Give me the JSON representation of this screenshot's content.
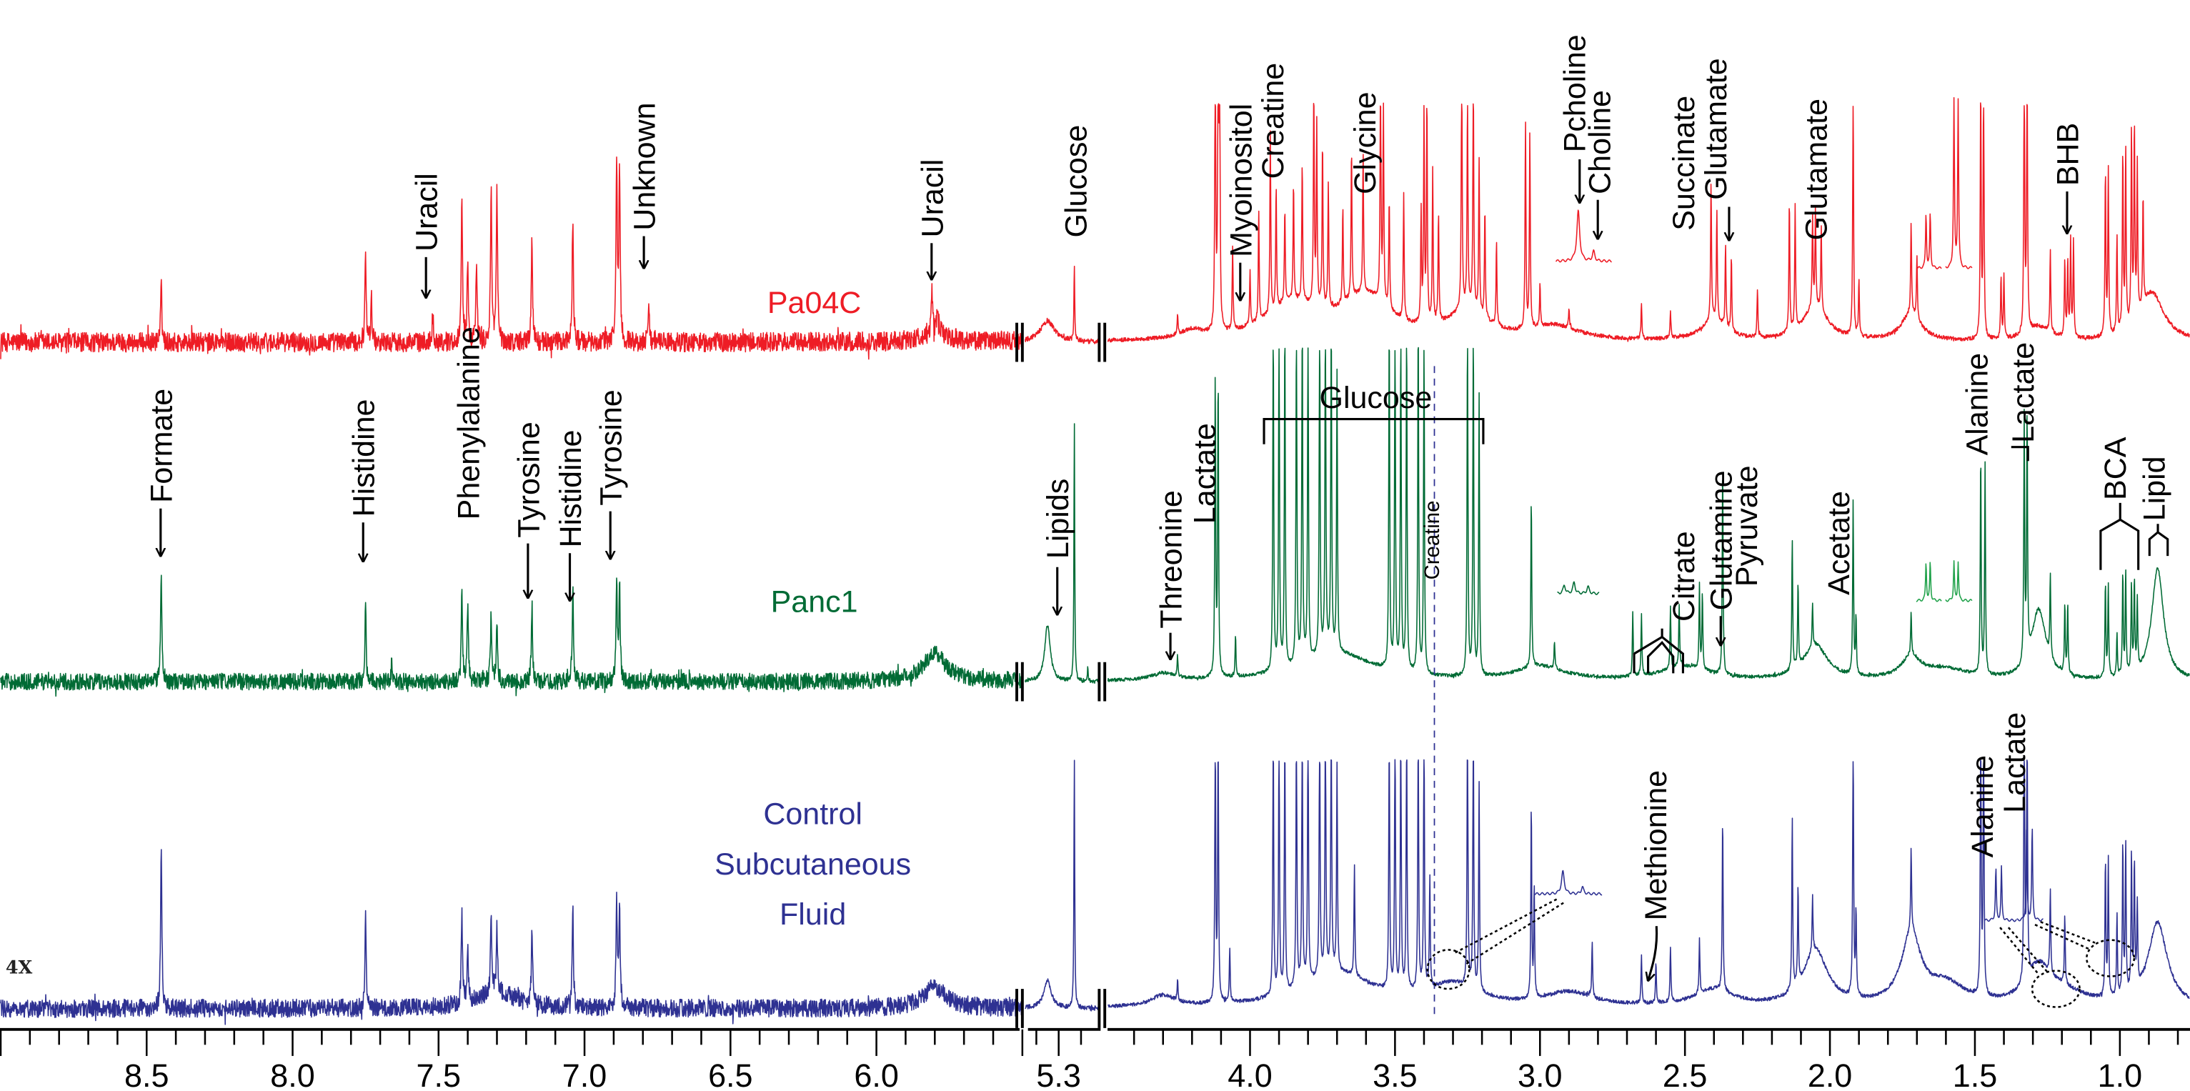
{
  "chart_data": {
    "type": "line",
    "title": "",
    "xlabel": "",
    "ylabel": "",
    "x_unit": "ppm",
    "x_reversed": true,
    "x_segments": [
      [
        9.0,
        5.5
      ],
      [
        5.45,
        5.12
      ],
      [
        4.49,
        0.76
      ]
    ],
    "x_ticks": [
      "8.5",
      "8.0",
      "7.5",
      "7.0",
      "6.5",
      "6.0",
      "5.3",
      "4.0",
      "3.5",
      "3.0",
      "2.5",
      "2.0",
      "1.5",
      "1.0"
    ],
    "x_tick_values": [
      8.5,
      8.0,
      7.5,
      7.0,
      6.5,
      6.0,
      5.3,
      4.0,
      3.5,
      3.0,
      2.5,
      2.0,
      1.5,
      1.0
    ],
    "scale_note": "4X",
    "reference_line_ppm": 3.23,
    "series": [
      {
        "name": "Pa04C",
        "name_lines": [
          "Pa04C"
        ],
        "color": "#ee1c25",
        "clip": 170,
        "peaks": [
          [
            8.45,
            40
          ],
          [
            7.75,
            65
          ],
          [
            7.73,
            30
          ],
          [
            7.52,
            22
          ],
          [
            7.42,
            105
          ],
          [
            7.4,
            60
          ],
          [
            7.37,
            55
          ],
          [
            7.32,
            110
          ],
          [
            7.3,
            108
          ],
          [
            7.18,
            75
          ],
          [
            7.04,
            90
          ],
          [
            6.89,
            130
          ],
          [
            6.88,
            125
          ],
          [
            6.78,
            32
          ],
          [
            5.81,
            30
          ],
          [
            5.79,
            20
          ],
          [
            5.8,
            8,
            0.05
          ],
          [
            5.35,
            15,
            0.04
          ],
          [
            5.23,
            55
          ],
          [
            4.2,
            6,
            0.05
          ],
          [
            3.85,
            25,
            0.12
          ],
          [
            3.6,
            30,
            0.1
          ],
          [
            3.25,
            20,
            0.08
          ],
          [
            2.95,
            10,
            0.1
          ],
          [
            2.4,
            15,
            0.05
          ],
          [
            2.05,
            25,
            0.05
          ],
          [
            1.72,
            20,
            0.04
          ],
          [
            1.28,
            10,
            0.05
          ],
          [
            0.89,
            35,
            0.05
          ],
          [
            4.25,
            15
          ],
          [
            4.12,
            220
          ],
          [
            4.11,
            220
          ],
          [
            4.105,
            200
          ],
          [
            4.06,
            60
          ],
          [
            4.0,
            40
          ],
          [
            3.97,
            80
          ],
          [
            3.93,
            130
          ],
          [
            3.91,
            90
          ],
          [
            3.88,
            70
          ],
          [
            3.85,
            85
          ],
          [
            3.82,
            100
          ],
          [
            3.78,
            160
          ],
          [
            3.77,
            130
          ],
          [
            3.75,
            120
          ],
          [
            3.73,
            90
          ],
          [
            3.68,
            70
          ],
          [
            3.65,
            110
          ],
          [
            3.61,
            100
          ],
          [
            3.55,
            170
          ],
          [
            3.54,
            140
          ],
          [
            3.52,
            80
          ],
          [
            3.47,
            90
          ],
          [
            3.41,
            80
          ],
          [
            3.4,
            150
          ],
          [
            3.39,
            160
          ],
          [
            3.37,
            110
          ],
          [
            3.35,
            80
          ],
          [
            3.27,
            190
          ],
          [
            3.25,
            150
          ],
          [
            3.23,
            170
          ],
          [
            3.21,
            110
          ],
          [
            3.19,
            80
          ],
          [
            3.15,
            60
          ],
          [
            3.05,
            150
          ],
          [
            3.035,
            140
          ],
          [
            3.0,
            30
          ],
          [
            2.9,
            15
          ],
          [
            2.65,
            25
          ],
          [
            2.55,
            20
          ],
          [
            2.41,
            100
          ],
          [
            2.39,
            80
          ],
          [
            2.36,
            60
          ],
          [
            2.34,
            55
          ],
          [
            2.25,
            35
          ],
          [
            2.14,
            95
          ],
          [
            2.12,
            90
          ],
          [
            2.06,
            65
          ],
          [
            2.05,
            70
          ],
          [
            2.03,
            60
          ],
          [
            1.92,
            180
          ],
          [
            1.9,
            40
          ],
          [
            1.72,
            65
          ],
          [
            1.7,
            45
          ],
          [
            1.48,
            190
          ],
          [
            1.47,
            190
          ],
          [
            1.41,
            45
          ],
          [
            1.4,
            45
          ],
          [
            1.33,
            200
          ],
          [
            1.32,
            200
          ],
          [
            1.24,
            60
          ],
          [
            1.19,
            55
          ],
          [
            1.18,
            55
          ],
          [
            1.17,
            70
          ],
          [
            1.16,
            70
          ],
          [
            1.05,
            120
          ],
          [
            1.04,
            120
          ],
          [
            1.01,
            70
          ],
          [
            0.99,
            130
          ],
          [
            0.98,
            130
          ],
          [
            0.96,
            140
          ],
          [
            0.95,
            140
          ],
          [
            0.94,
            110
          ],
          [
            0.92,
            80
          ]
        ],
        "annotations": [
          "Uracil",
          "Unknown",
          "Uracil",
          "Glucose",
          "Myoinositol",
          "Creatine",
          "Glycine",
          "Pcholine",
          "Choline",
          "Succinate",
          "Glutamate",
          "Glutamate",
          "BHB"
        ]
      },
      {
        "name": "Panc1",
        "name_lines": [
          "Panc1"
        ],
        "color": "#006b35",
        "clip": 238,
        "peaks": [
          [
            8.45,
            80
          ],
          [
            7.75,
            55
          ],
          [
            7.66,
            15
          ],
          [
            7.42,
            65
          ],
          [
            7.4,
            55
          ],
          [
            7.32,
            50
          ],
          [
            7.3,
            45
          ],
          [
            7.18,
            55
          ],
          [
            7.04,
            70
          ],
          [
            6.89,
            75
          ],
          [
            6.88,
            70
          ],
          [
            5.8,
            20,
            0.05
          ],
          [
            5.35,
            40,
            0.015
          ],
          [
            5.23,
            190
          ],
          [
            5.17,
            10
          ],
          [
            4.3,
            5,
            0.05
          ],
          [
            3.7,
            20,
            0.15
          ],
          [
            3.0,
            10,
            0.1
          ],
          [
            2.5,
            10,
            0.1
          ],
          [
            2.05,
            25,
            0.05
          ],
          [
            1.72,
            15,
            0.04
          ],
          [
            1.28,
            50,
            0.03
          ],
          [
            0.87,
            80,
            0.025
          ],
          [
            1.6,
            8,
            0.1
          ],
          [
            4.25,
            15
          ],
          [
            4.12,
            215
          ],
          [
            4.11,
            215
          ],
          [
            4.05,
            30
          ],
          [
            3.92,
            260
          ],
          [
            3.9,
            260
          ],
          [
            3.88,
            250
          ],
          [
            3.84,
            260
          ],
          [
            3.82,
            260
          ],
          [
            3.8,
            250
          ],
          [
            3.76,
            260
          ],
          [
            3.74,
            260
          ],
          [
            3.72,
            250
          ],
          [
            3.7,
            200
          ],
          [
            3.52,
            260
          ],
          [
            3.5,
            260
          ],
          [
            3.48,
            250
          ],
          [
            3.46,
            260
          ],
          [
            3.42,
            260
          ],
          [
            3.4,
            250
          ],
          [
            3.25,
            260
          ],
          [
            3.23,
            260
          ],
          [
            3.21,
            200
          ],
          [
            3.03,
            123
          ],
          [
            2.95,
            20
          ],
          [
            2.68,
            45
          ],
          [
            2.65,
            45
          ],
          [
            2.55,
            45
          ],
          [
            2.52,
            45
          ],
          [
            2.45,
            60
          ],
          [
            2.44,
            55
          ],
          [
            2.37,
            150
          ],
          [
            2.13,
            95
          ],
          [
            2.11,
            60
          ],
          [
            2.06,
            30
          ],
          [
            1.92,
            125
          ],
          [
            1.91,
            40
          ],
          [
            1.72,
            30
          ],
          [
            1.48,
            160
          ],
          [
            1.465,
            150
          ],
          [
            1.33,
            175
          ],
          [
            1.32,
            175
          ],
          [
            1.24,
            60
          ],
          [
            1.19,
            50
          ],
          [
            1.18,
            50
          ],
          [
            1.05,
            67
          ],
          [
            1.04,
            67
          ],
          [
            1.01,
            30
          ],
          [
            0.99,
            75
          ],
          [
            0.98,
            75
          ],
          [
            0.96,
            65
          ],
          [
            0.95,
            65
          ],
          [
            0.94,
            50
          ]
        ],
        "annotations": [
          "Formate",
          "Histidine",
          "Phenylalanine",
          "Tyrosine",
          "Histidine",
          "Tyrosine",
          "Lipids",
          "Threonine",
          "Lactate",
          "Glucose",
          "Creatine",
          "Citrate",
          "Glutamine",
          "Pyruvate",
          "Acetate",
          "Alanine",
          "Lactate",
          "BCA",
          "Lipid"
        ]
      },
      {
        "name": "Control Subcutaneous Fluid",
        "name_lines": [
          "Control",
          "Subcutaneous",
          "Fluid"
        ],
        "color": "#2e3192",
        "clip": 177,
        "peaks": [
          [
            8.45,
            120
          ],
          [
            7.75,
            70
          ],
          [
            7.42,
            65
          ],
          [
            7.4,
            40
          ],
          [
            7.32,
            55
          ],
          [
            7.3,
            45
          ],
          [
            7.18,
            55
          ],
          [
            7.04,
            70
          ],
          [
            6.89,
            80
          ],
          [
            6.88,
            70
          ],
          [
            7.3,
            12,
            0.08
          ],
          [
            5.8,
            15,
            0.05
          ],
          [
            5.35,
            20,
            0.02
          ],
          [
            5.23,
            185
          ],
          [
            4.3,
            8,
            0.05
          ],
          [
            3.7,
            25,
            0.15
          ],
          [
            3.3,
            15,
            0.1
          ],
          [
            2.9,
            10,
            0.1
          ],
          [
            2.4,
            12,
            0.08
          ],
          [
            2.05,
            40,
            0.05
          ],
          [
            1.72,
            50,
            0.04
          ],
          [
            1.6,
            15,
            0.08
          ],
          [
            1.28,
            25,
            0.05
          ],
          [
            0.87,
            60,
            0.04
          ],
          [
            1.2,
            10,
            0.1
          ],
          [
            4.25,
            15
          ],
          [
            4.12,
            200
          ],
          [
            4.11,
            200
          ],
          [
            4.07,
            40
          ],
          [
            3.92,
            200
          ],
          [
            3.9,
            200
          ],
          [
            3.88,
            200
          ],
          [
            3.84,
            200
          ],
          [
            3.82,
            200
          ],
          [
            3.8,
            200
          ],
          [
            3.76,
            200
          ],
          [
            3.74,
            200
          ],
          [
            3.72,
            200
          ],
          [
            3.7,
            150
          ],
          [
            3.64,
            80
          ],
          [
            3.52,
            200
          ],
          [
            3.5,
            200
          ],
          [
            3.48,
            200
          ],
          [
            3.46,
            200
          ],
          [
            3.42,
            200
          ],
          [
            3.4,
            200
          ],
          [
            3.38,
            80
          ],
          [
            3.25,
            200
          ],
          [
            3.23,
            200
          ],
          [
            3.21,
            150
          ],
          [
            3.03,
            140
          ],
          [
            3.02,
            80
          ],
          [
            2.82,
            40
          ],
          [
            2.65,
            35
          ],
          [
            2.6,
            30
          ],
          [
            2.55,
            40
          ],
          [
            2.45,
            40
          ],
          [
            2.37,
            125
          ],
          [
            2.13,
            125
          ],
          [
            2.11,
            70
          ],
          [
            2.06,
            40
          ],
          [
            1.92,
            200
          ],
          [
            1.91,
            60
          ],
          [
            1.72,
            60
          ],
          [
            1.48,
            200
          ],
          [
            1.47,
            200
          ],
          [
            1.33,
            200
          ],
          [
            1.32,
            200
          ],
          [
            1.24,
            60
          ],
          [
            1.19,
            50
          ],
          [
            1.05,
            100
          ],
          [
            1.04,
            100
          ],
          [
            1.01,
            60
          ],
          [
            0.99,
            110
          ],
          [
            0.98,
            110
          ],
          [
            0.96,
            100
          ],
          [
            0.95,
            90
          ],
          [
            0.94,
            60
          ]
        ],
        "annotations": [
          "Methionine",
          "Alanine",
          "Lactate"
        ]
      }
    ]
  }
}
